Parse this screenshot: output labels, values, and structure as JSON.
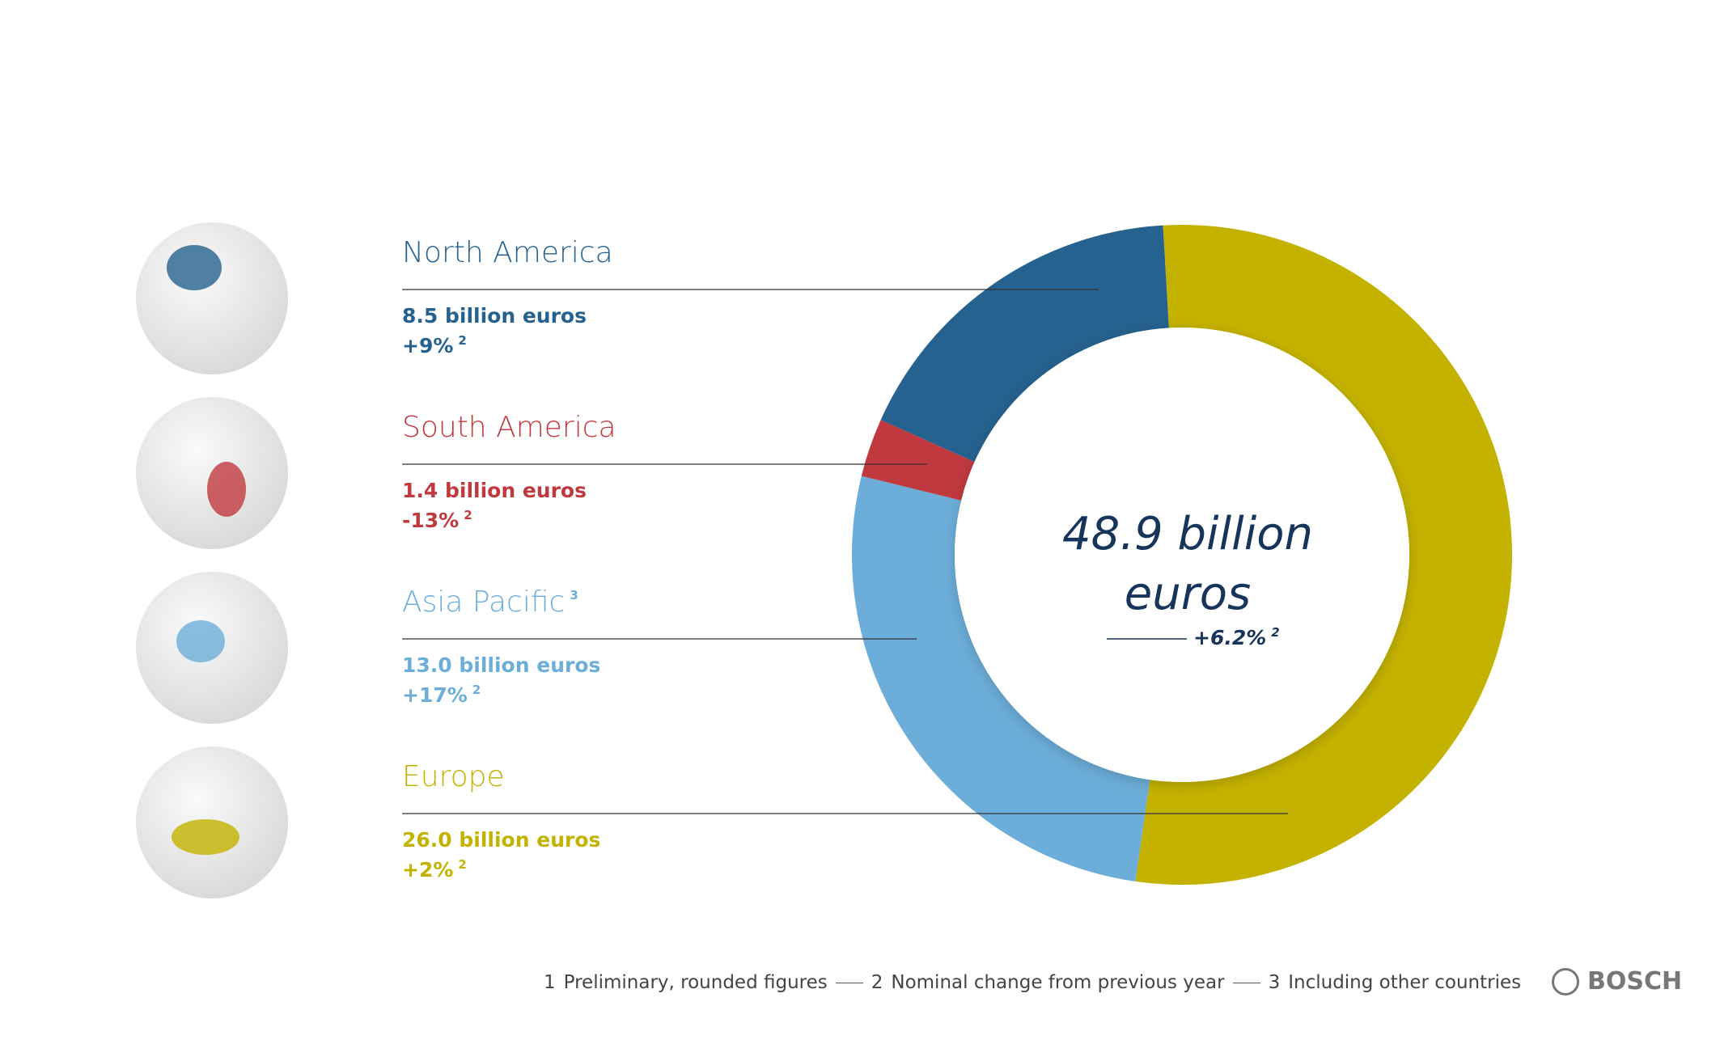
{
  "chart_data": {
    "type": "pie",
    "categories": [
      "North America",
      "South America",
      "Asia Pacific",
      "Europe"
    ],
    "category_notes": [
      null,
      null,
      "3",
      null
    ],
    "values": [
      8.5,
      1.4,
      13.0,
      26.0
    ],
    "value_labels": [
      "8.5 billion euros",
      "1.4 billion euros",
      "13.0 billion euros",
      "26.0 billion euros"
    ],
    "change_labels": [
      "+9%",
      "-13%",
      "+17%",
      "+2%"
    ],
    "change_note": "2",
    "colors": [
      "#26628f",
      "#c0393f",
      "#6caed9",
      "#c4b200"
    ],
    "center_label": "48.9 billion euros",
    "center_change": "+6.2%",
    "footnotes": [
      {
        "marker": "1",
        "text": "Preliminary, rounded figures"
      },
      {
        "marker": "2",
        "text": "Nominal change from previous year"
      },
      {
        "marker": "3",
        "text": "Including other countries"
      }
    ],
    "logo": "BOSCH"
  }
}
